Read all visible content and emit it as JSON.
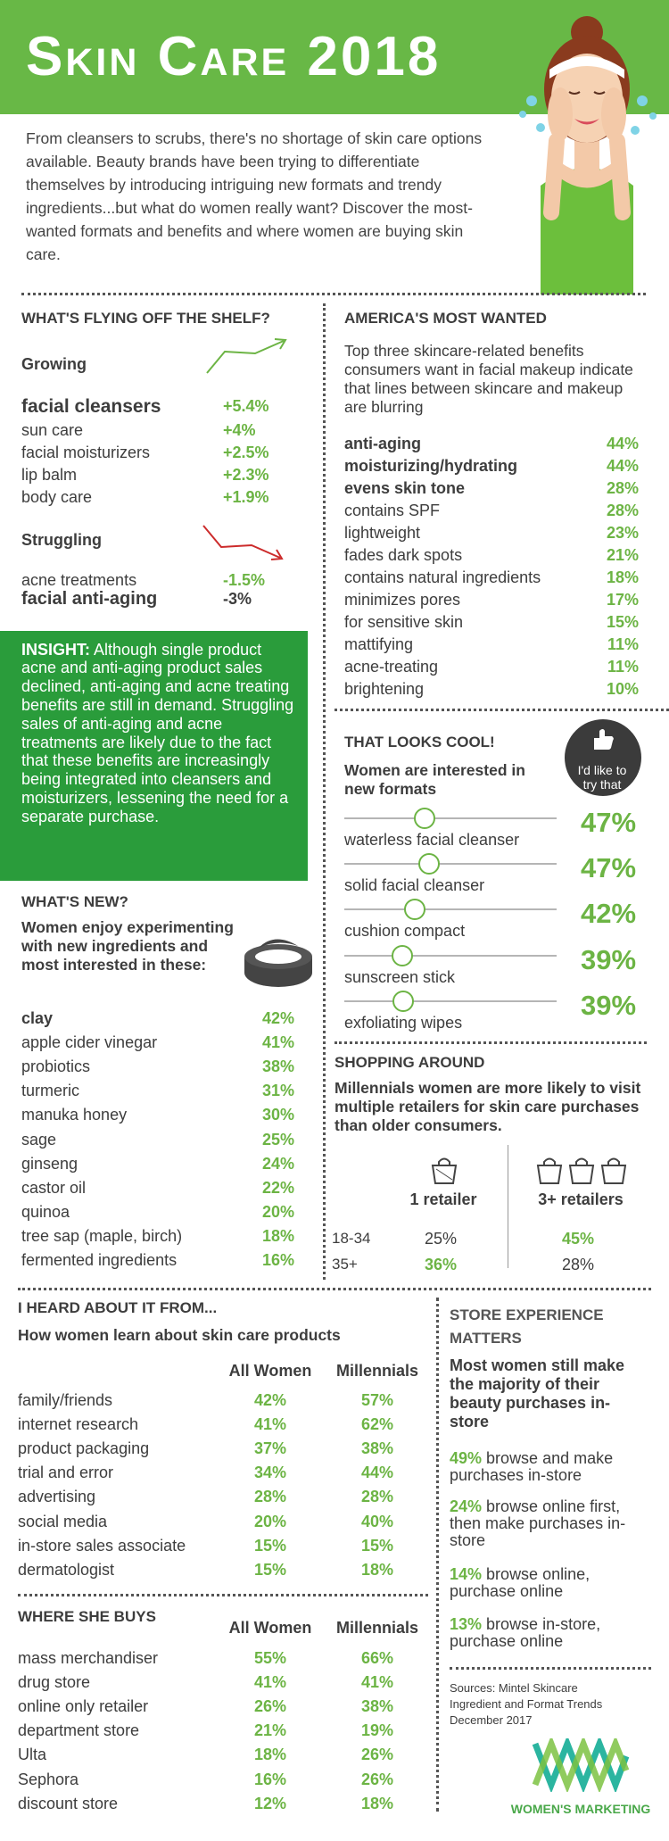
{
  "header": {
    "title": "Skin Care 2018"
  },
  "intro": "From cleansers to scrubs, there's no shortage of skin care options available. Beauty brands have been trying to differentiate themselves by introducing intriguing new formats and trendy ingredients...but what do women really want?  Discover the most-wanted formats and benefits and where women are buying skin care.",
  "flying_off_shelf": {
    "title": "WHAT'S FLYING OFF THE SHELF?",
    "growing": {
      "label": "Growing",
      "items": [
        {
          "name": "facial cleansers",
          "change": "+5.4%"
        },
        {
          "name": "sun care",
          "change": "+4%"
        },
        {
          "name": "facial moisturizers",
          "change": "+2.5%"
        },
        {
          "name": "lip balm",
          "change": "+2.3%"
        },
        {
          "name": "body care",
          "change": "+1.9%"
        }
      ]
    },
    "struggling": {
      "label": "Struggling",
      "items": [
        {
          "name": "acne treatments",
          "change": "-1.5%"
        },
        {
          "name": "facial anti-aging",
          "change": "-3%"
        }
      ]
    }
  },
  "insight": {
    "label": "INSIGHT:",
    "text": "Although single product acne and anti-aging product sales declined, anti-aging and acne treating benefits are still in demand. Struggling sales of anti-aging and acne treatments are likely due to the fact that these benefits are increasingly being integrated into cleansers and moisturizers, lessening the need for a separate purchase."
  },
  "whats_new": {
    "title": "WHAT'S NEW?",
    "subtitle": "Women enjoy experimenting with new ingredients and most interested in these:",
    "items": [
      {
        "name": "clay",
        "pct": "42%"
      },
      {
        "name": "apple cider vinegar",
        "pct": "41%"
      },
      {
        "name": "probiotics",
        "pct": "38%"
      },
      {
        "name": "turmeric",
        "pct": "31%"
      },
      {
        "name": "manuka honey",
        "pct": "30%"
      },
      {
        "name": "sage",
        "pct": "25%"
      },
      {
        "name": "ginseng",
        "pct": "24%"
      },
      {
        "name": "castor oil",
        "pct": "22%"
      },
      {
        "name": "quinoa",
        "pct": "20%"
      },
      {
        "name": "tree sap (maple, birch)",
        "pct": "18%"
      },
      {
        "name": "fermented ingredients",
        "pct": "16%"
      }
    ]
  },
  "most_wanted": {
    "title": "AMERICA'S MOST WANTED",
    "subtitle": "Top three skincare-related benefits consumers want in facial makeup indicate that lines between skincare and makeup are blurring",
    "items": [
      {
        "name": "anti-aging",
        "pct": "44%"
      },
      {
        "name": "moisturizing/hydrating",
        "pct": "44%"
      },
      {
        "name": "evens skin tone",
        "pct": "28%"
      },
      {
        "name": "contains SPF",
        "pct": "28%"
      },
      {
        "name": "lightweight",
        "pct": "23%"
      },
      {
        "name": "fades dark spots",
        "pct": "21%"
      },
      {
        "name": "contains natural ingredients",
        "pct": "18%"
      },
      {
        "name": "minimizes pores",
        "pct": "17%"
      },
      {
        "name": "for sensitive skin",
        "pct": "15%"
      },
      {
        "name": "mattifying",
        "pct": "11%"
      },
      {
        "name": "acne-treating",
        "pct": "11%"
      },
      {
        "name": "brightening",
        "pct": "10%"
      }
    ]
  },
  "looks_cool": {
    "title": "THAT LOOKS COOL!",
    "subtitle": "Women are interested in new formats",
    "badge": "I'd like to try that",
    "items": [
      {
        "name": "waterless facial cleanser",
        "pct": "47%"
      },
      {
        "name": "solid facial cleanser",
        "pct": "47%"
      },
      {
        "name": "cushion compact",
        "pct": "42%"
      },
      {
        "name": "sunscreen stick",
        "pct": "39%"
      },
      {
        "name": "exfoliating wipes",
        "pct": "39%"
      }
    ]
  },
  "shopping": {
    "title": "SHOPPING AROUND",
    "subtitle": "Millennials women are more likely to visit multiple retailers for skin care purchases than older consumers.",
    "columns": [
      "1 retailer",
      "3+ retailers"
    ],
    "rows": [
      {
        "age": "18-34",
        "values": [
          "25%",
          "45%"
        ]
      },
      {
        "age": "35+",
        "values": [
          "36%",
          "28%"
        ]
      }
    ]
  },
  "heard_about": {
    "title": "I HEARD ABOUT IT FROM...",
    "subtitle": "How women learn about skin care products",
    "columns": [
      "All Women",
      "Millennials"
    ],
    "rows": [
      {
        "name": "family/friends",
        "values": [
          "42%",
          "57%"
        ]
      },
      {
        "name": "internet research",
        "values": [
          "41%",
          "62%"
        ]
      },
      {
        "name": "product packaging",
        "values": [
          "37%",
          "38%"
        ]
      },
      {
        "name": "trial and error",
        "values": [
          "34%",
          "44%"
        ]
      },
      {
        "name": "advertising",
        "values": [
          "28%",
          "28%"
        ]
      },
      {
        "name": "social media",
        "values": [
          "20%",
          "40%"
        ]
      },
      {
        "name": "in-store sales associate",
        "values": [
          "15%",
          "15%"
        ]
      },
      {
        "name": "dermatologist",
        "values": [
          "15%",
          "18%"
        ]
      }
    ]
  },
  "where_buys": {
    "title": "WHERE SHE BUYS",
    "columns": [
      "All Women",
      "Millennials"
    ],
    "rows": [
      {
        "name": "mass merchandiser",
        "values": [
          "55%",
          "66%"
        ]
      },
      {
        "name": "drug store",
        "values": [
          "41%",
          "41%"
        ]
      },
      {
        "name": "online only retailer",
        "values": [
          "26%",
          "38%"
        ]
      },
      {
        "name": "department store",
        "values": [
          "21%",
          "19%"
        ]
      },
      {
        "name": "Ulta",
        "values": [
          "18%",
          "26%"
        ]
      },
      {
        "name": "Sephora",
        "values": [
          "16%",
          "26%"
        ]
      },
      {
        "name": "discount store",
        "values": [
          "12%",
          "18%"
        ]
      }
    ]
  },
  "store": {
    "title": "STORE EXPERIENCE MATTERS",
    "subtitle": "Most women still make the majority of their beauty purchases in-store",
    "items": [
      {
        "pct": "49%",
        "text": "browse and make purchases in-store"
      },
      {
        "pct": "24%",
        "text": "browse online first, then make purchases in-store"
      },
      {
        "pct": "14%",
        "text": "browse online, purchase online"
      },
      {
        "pct": "13%",
        "text": "browse in-store, purchase online"
      }
    ]
  },
  "sources": "Sources: Mintel Skincare Ingredient and Format Trends December 2017",
  "logo": "WOMEN'S MARKETING"
}
